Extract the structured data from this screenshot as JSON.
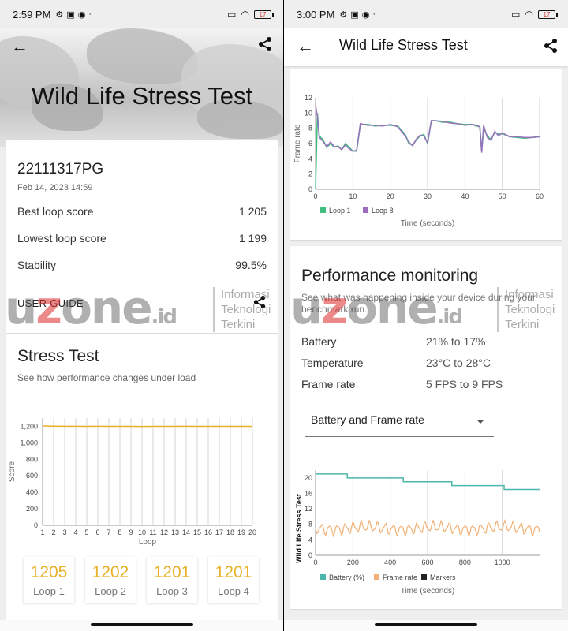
{
  "left": {
    "status": {
      "time": "2:59 PM",
      "battery": "17"
    },
    "title": "Wild Life Stress Test",
    "device": "22111317PG",
    "date": "Feb 14, 2023 14:59",
    "rows": [
      {
        "label": "Best loop score",
        "value": "1 205"
      },
      {
        "label": "Lowest loop score",
        "value": "1 199"
      },
      {
        "label": "Stability",
        "value": "99.5%"
      }
    ],
    "user_guide": "USER GUIDE",
    "stress": {
      "title": "Stress Test",
      "subtitle": "See how performance changes under load"
    },
    "loops": [
      {
        "value": "1205",
        "label": "Loop 1"
      },
      {
        "value": "1202",
        "label": "Loop 2"
      },
      {
        "value": "1201",
        "label": "Loop 3"
      },
      {
        "value": "1201",
        "label": "Loop 4"
      }
    ]
  },
  "right": {
    "status": {
      "time": "3:00 PM",
      "battery": "17"
    },
    "title": "Wild Life Stress Test",
    "perf": {
      "title": "Performance monitoring",
      "subtitle": "See what was happening inside your device during your benchmark run.",
      "rows": [
        {
          "label": "Battery",
          "value": "21% to 17%"
        },
        {
          "label": "Temperature",
          "value": "23°C to 28°C"
        },
        {
          "label": "Frame rate",
          "value": "5 FPS to 9 FPS"
        }
      ],
      "select_value": "Battery and Frame rate"
    }
  },
  "watermark": {
    "logo_u": "u",
    "logo_z": "z",
    "logo_rest": "one",
    "logo_id": ".id",
    "tagline": [
      "Informasi",
      "Teknologi",
      "Terkini"
    ]
  },
  "colors": {
    "accent": "#e8b12a",
    "loop1": "#3fbf7f",
    "loop8": "#9b6bbf",
    "battery": "#4db6ac",
    "framerate": "#f2b074",
    "markers": "#222222"
  },
  "chart_data": [
    {
      "type": "line",
      "title": "",
      "xlabel": "Loop",
      "ylabel": "Score",
      "ylim": [
        0,
        1300
      ],
      "yticks": [
        0,
        200,
        400,
        600,
        800,
        1000,
        1200
      ],
      "ytick_labels": [
        "0",
        "200",
        "400",
        "600",
        "800",
        "1,000",
        "1,200"
      ],
      "x": [
        1,
        2,
        3,
        4,
        5,
        6,
        7,
        8,
        9,
        10,
        11,
        12,
        13,
        14,
        15,
        16,
        17,
        18,
        19,
        20
      ],
      "series": [
        {
          "values": [
            1205,
            1202,
            1201,
            1201,
            1200,
            1201,
            1200,
            1200,
            1200,
            1199,
            1200,
            1200,
            1200,
            1201,
            1200,
            1200,
            1200,
            1200,
            1200,
            1200
          ]
        }
      ]
    },
    {
      "type": "line",
      "xlabel": "Time (seconds)",
      "ylabel": "Frame rate",
      "xlim": [
        0,
        60
      ],
      "ylim": [
        0,
        12
      ],
      "xticks": [
        0,
        10,
        20,
        30,
        40,
        50,
        60
      ],
      "yticks": [
        0,
        2,
        4,
        6,
        8,
        10,
        12
      ],
      "series": [
        {
          "name": "Loop 1",
          "x": [
            0,
            0.5,
            1,
            2,
            3,
            4,
            5,
            6,
            7,
            8,
            9,
            10,
            11,
            12,
            14,
            16,
            18,
            20,
            22,
            24,
            25,
            26,
            27,
            28,
            29,
            30,
            31,
            32,
            34,
            36,
            38,
            40,
            42,
            43,
            44,
            44.5,
            45,
            46,
            47,
            48,
            49,
            50,
            52,
            54,
            56,
            58,
            60
          ],
          "values": [
            0,
            10,
            7,
            6.5,
            5.5,
            6,
            5.5,
            5.7,
            5.2,
            6,
            5.5,
            5,
            5,
            8.5,
            8.5,
            8.3,
            8.4,
            8.4,
            8.3,
            7.2,
            6,
            5.8,
            6.5,
            7,
            7.2,
            6,
            9,
            9,
            8.8,
            8.8,
            8.6,
            8.5,
            8.5,
            8.3,
            8.2,
            5,
            8,
            7,
            6.5,
            7.5,
            7.2,
            7.3,
            6.9,
            6.8,
            6.7,
            6.8,
            6.9
          ]
        },
        {
          "name": "Loop 8",
          "x": [
            0,
            0.5,
            1,
            2,
            3,
            4,
            5,
            6,
            7,
            8,
            9,
            10,
            11,
            12,
            14,
            16,
            18,
            20,
            22,
            24,
            25,
            26,
            27,
            28,
            29,
            30,
            31,
            32,
            34,
            36,
            38,
            40,
            42,
            43,
            44,
            44.5,
            45,
            46,
            47,
            48,
            49,
            50,
            52,
            54,
            56,
            58,
            60
          ],
          "values": [
            11,
            9.5,
            6.8,
            6.3,
            5.6,
            6.2,
            5.6,
            5.6,
            5.2,
            5.8,
            5.3,
            5,
            5.1,
            8.6,
            8.4,
            8.4,
            8.3,
            8.5,
            8.2,
            7.0,
            6.2,
            5.7,
            6.6,
            7.1,
            7.0,
            6.1,
            9,
            9,
            8.9,
            8.7,
            8.6,
            8.4,
            8.5,
            8.4,
            8.2,
            4.8,
            8.4,
            6.8,
            6.4,
            7.6,
            7.0,
            7.4,
            6.9,
            6.9,
            6.8,
            6.8,
            6.9
          ]
        }
      ]
    },
    {
      "type": "line",
      "xlabel": "Time (seconds)",
      "ylabel": "Wild Life Stress Test",
      "xlim": [
        0,
        1200
      ],
      "ylim": [
        0,
        22
      ],
      "xticks": [
        0,
        200,
        400,
        600,
        800,
        1000
      ],
      "yticks": [
        0,
        4,
        8,
        12,
        16,
        20
      ],
      "series": [
        {
          "name": "Battery (%)",
          "x": [
            0,
            60,
            170,
            470,
            730,
            1010,
            1200
          ],
          "values": [
            21,
            21,
            20,
            19,
            18,
            17,
            17
          ],
          "step": true
        },
        {
          "name": "Frame rate",
          "x_range": [
            0,
            1200
          ],
          "min": 5,
          "max": 9
        },
        {
          "name": "Markers"
        }
      ]
    }
  ]
}
